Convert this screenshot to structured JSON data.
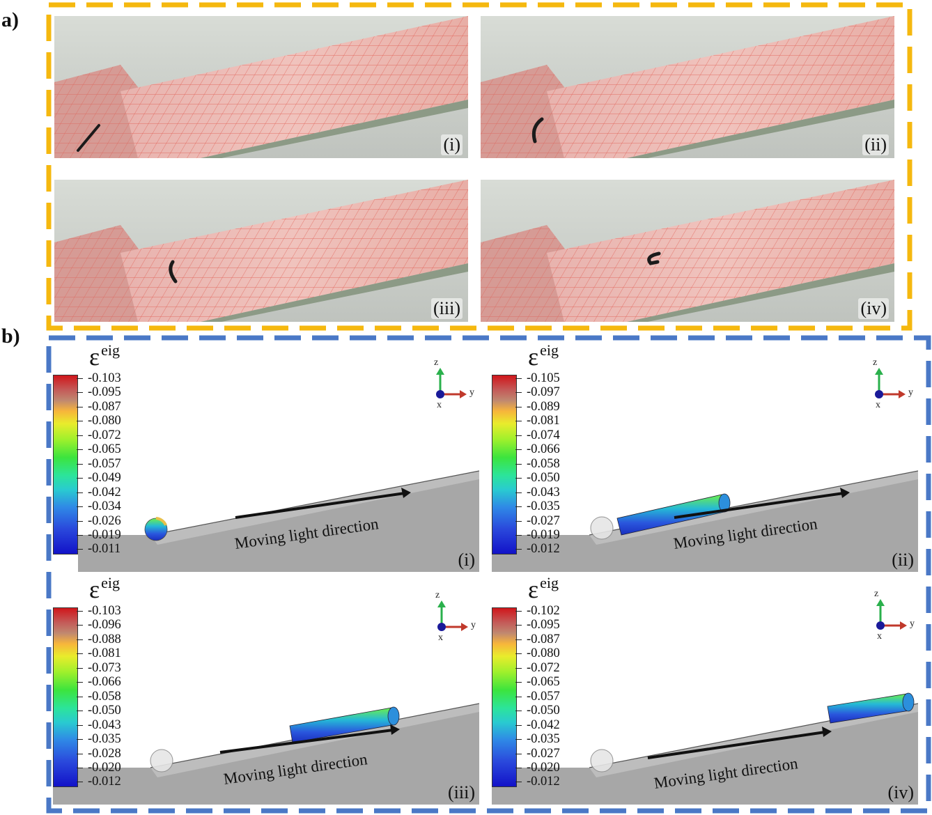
{
  "figure": {
    "part_a_label": "a)",
    "part_b_label": "b)",
    "frame_a_color": "#f5b80f",
    "frame_b_color": "#4a78c6"
  },
  "photos": [
    {
      "label": "(i)"
    },
    {
      "label": "(ii)"
    },
    {
      "label": "(iii)"
    },
    {
      "label": "(iv)"
    }
  ],
  "simulations": [
    {
      "label": "(i)",
      "legend_symbol": "ε",
      "legend_superscript": "eig",
      "colorbar_ticks": [
        "-0.103",
        "-0.095",
        "-0.087",
        "-0.080",
        "-0.072",
        "-0.065",
        "-0.057",
        "-0.049",
        "-0.042",
        "-0.034",
        "-0.026",
        "-0.019",
        "-0.011"
      ],
      "arrow_text": "Moving light direction",
      "axis_z": "z",
      "axis_y": "y",
      "axis_x": "x"
    },
    {
      "label": "(ii)",
      "legend_symbol": "ε",
      "legend_superscript": "eig",
      "colorbar_ticks": [
        "-0.105",
        "-0.097",
        "-0.089",
        "-0.081",
        "-0.074",
        "-0.066",
        "-0.058",
        "-0.050",
        "-0.043",
        "-0.035",
        "-0.027",
        "-0.019",
        "-0.012"
      ],
      "arrow_text": "Moving light direction",
      "axis_z": "z",
      "axis_y": "y",
      "axis_x": "x"
    },
    {
      "label": "(iii)",
      "legend_symbol": "ε",
      "legend_superscript": "eig",
      "colorbar_ticks": [
        "-0.103",
        "-0.096",
        "-0.088",
        "-0.081",
        "-0.073",
        "-0.066",
        "-0.058",
        "-0.050",
        "-0.043",
        "-0.035",
        "-0.028",
        "-0.020",
        "-0.012"
      ],
      "arrow_text": "Moving light direction",
      "axis_z": "z",
      "axis_y": "y",
      "axis_x": "x"
    },
    {
      "label": "(iv)",
      "legend_symbol": "ε",
      "legend_superscript": "eig",
      "colorbar_ticks": [
        "-0.102",
        "-0.095",
        "-0.087",
        "-0.080",
        "-0.072",
        "-0.065",
        "-0.057",
        "-0.050",
        "-0.042",
        "-0.035",
        "-0.027",
        "-0.020",
        "-0.012"
      ],
      "arrow_text": "Moving light direction",
      "axis_z": "z",
      "axis_y": "y",
      "axis_x": "x"
    }
  ]
}
